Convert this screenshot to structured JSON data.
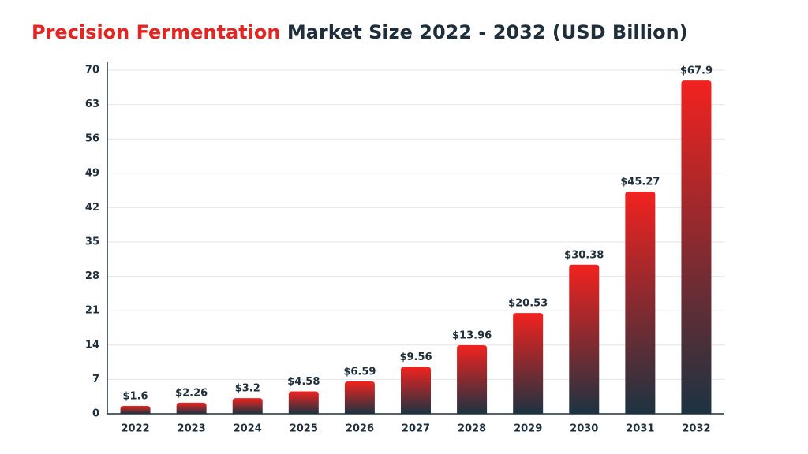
{
  "chart_data": {
    "type": "bar",
    "title_prefix": "Precision Fermentation",
    "title_prefix_color": "#e52521",
    "title": "Market Size 2022 - 2032 (USD Billion)",
    "categories": [
      "2022",
      "2023",
      "2024",
      "2025",
      "2026",
      "2027",
      "2028",
      "2029",
      "2030",
      "2031",
      "2032"
    ],
    "values": [
      1.6,
      2.26,
      3.2,
      4.58,
      6.59,
      9.56,
      13.96,
      20.53,
      30.38,
      45.27,
      67.9
    ],
    "value_labels": [
      "$1.6",
      "$2.26",
      "$3.2",
      "$4.58",
      "$6.59",
      "$9.56",
      "$13.96",
      "$20.53",
      "$30.38",
      "$45.27",
      "$67.9"
    ],
    "color": "#f2221f",
    "color_bottom": "#1c3341",
    "ylim": [
      0,
      70
    ],
    "yticks": [
      0,
      7,
      14,
      21,
      28,
      35,
      42,
      49,
      56,
      63,
      70
    ],
    "grid": true
  }
}
